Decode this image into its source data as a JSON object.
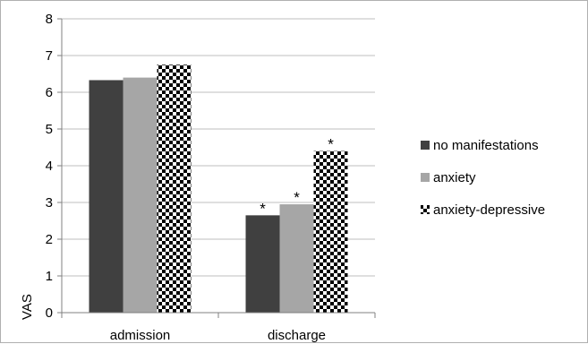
{
  "chart_data": {
    "type": "bar",
    "title": "",
    "xlabel": "",
    "ylabel": "VAS",
    "ylim": [
      0,
      8
    ],
    "yticks": [
      0,
      1,
      2,
      3,
      4,
      5,
      6,
      7,
      8
    ],
    "grid": true,
    "legend_position": "right",
    "categories": [
      "admission",
      "discharge"
    ],
    "series": [
      {
        "name": "no manifestations",
        "values": [
          6.33,
          2.65
        ],
        "color": "#404040",
        "pattern": "solid",
        "markers": [
          "",
          "*"
        ]
      },
      {
        "name": "anxiety",
        "values": [
          6.4,
          2.95
        ],
        "color": "#a6a6a6",
        "pattern": "solid",
        "markers": [
          "",
          "*"
        ]
      },
      {
        "name": "anxiety-depressive",
        "values": [
          6.75,
          4.4
        ],
        "color": "#000000",
        "pattern": "checker",
        "markers": [
          "",
          "*"
        ]
      }
    ]
  }
}
